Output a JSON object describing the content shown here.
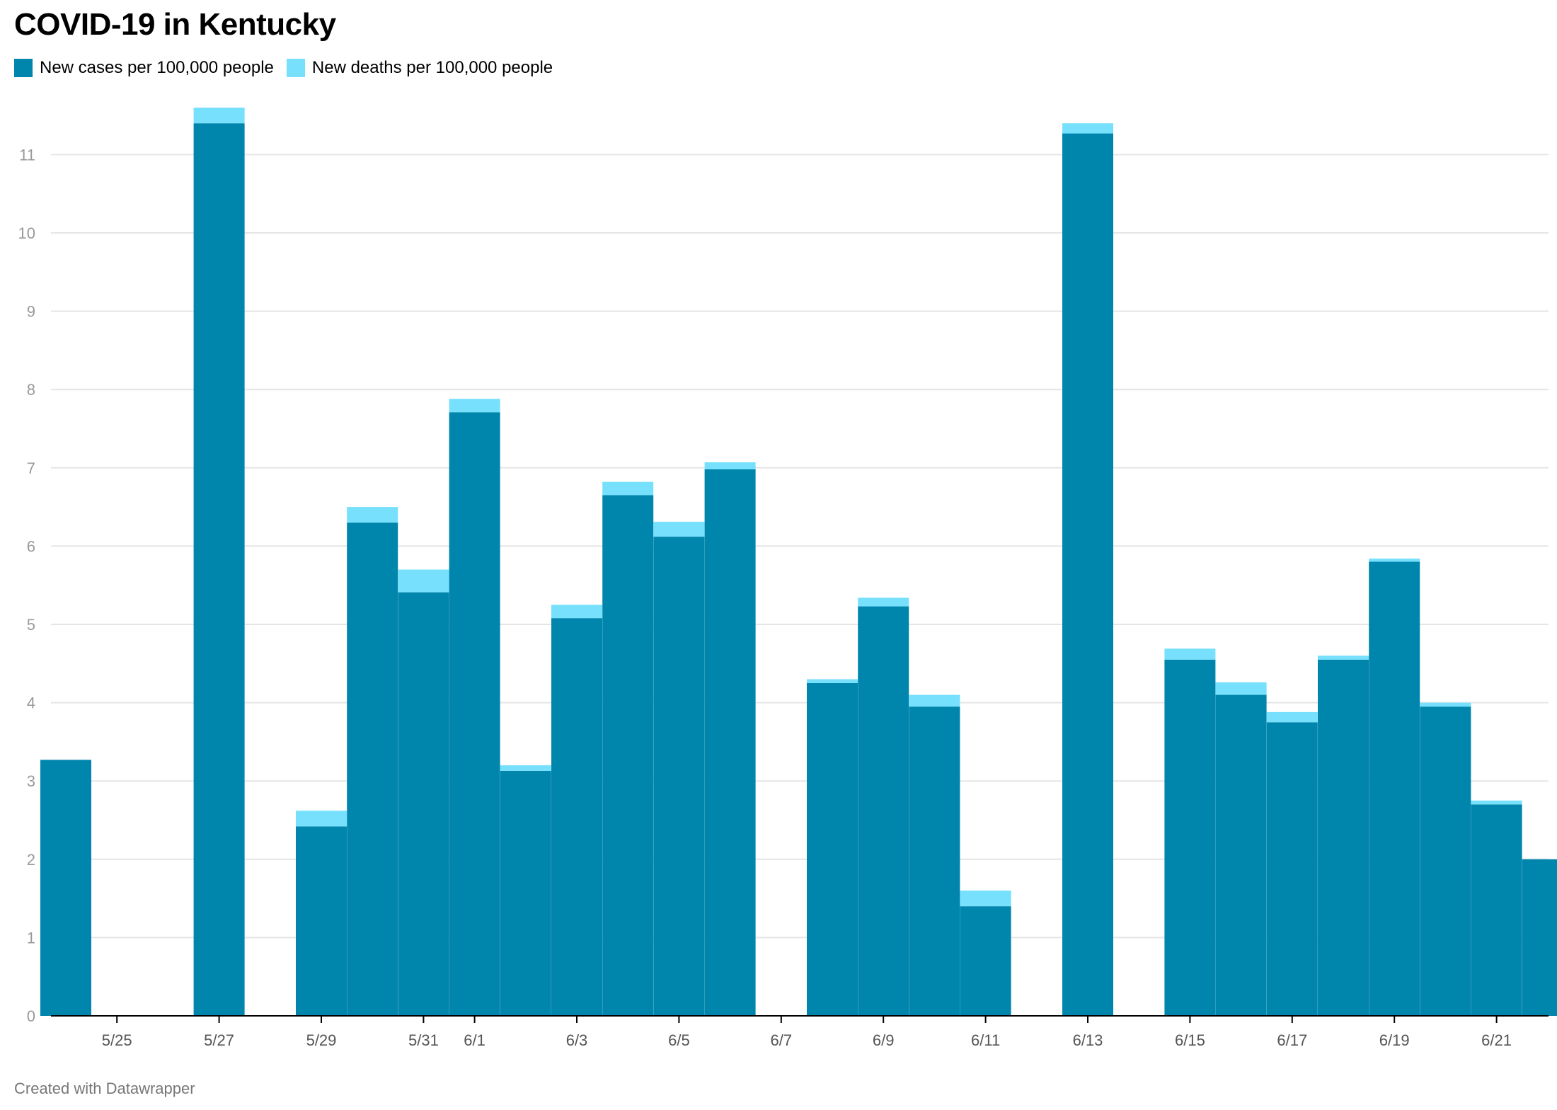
{
  "title": "COVID-19 in Kentucky",
  "credit": "Created with Datawrapper",
  "colors": {
    "cases": "#0085ad",
    "deaths": "#76e0fd",
    "grid": "#e5e5e5",
    "axis": "#000000",
    "y_tick_text": "#999999",
    "x_tick_text": "#555555"
  },
  "chart_data": {
    "type": "bar",
    "stacked": true,
    "title": "COVID-19 in Kentucky",
    "xlabel": "",
    "ylabel": "",
    "ylim": [
      0,
      11.6
    ],
    "grid": true,
    "legend": "top-left",
    "categories": [
      "5/24",
      "5/25",
      "5/26",
      "5/27",
      "5/28",
      "5/29",
      "5/30",
      "5/31",
      "6/1",
      "6/2",
      "6/3",
      "6/4",
      "6/5",
      "6/6",
      "6/7",
      "6/8",
      "6/9",
      "6/10",
      "6/11",
      "6/12",
      "6/13",
      "6/14",
      "6/15",
      "6/16",
      "6/17",
      "6/18",
      "6/19",
      "6/20",
      "6/21",
      "6/22"
    ],
    "x_ticks": [
      "5/25",
      "5/27",
      "5/29",
      "5/31",
      "6/1",
      "6/3",
      "6/5",
      "6/7",
      "6/9",
      "6/11",
      "6/13",
      "6/15",
      "6/17",
      "6/19",
      "6/21"
    ],
    "y_ticks": [
      0,
      1,
      2,
      3,
      4,
      5,
      6,
      7,
      8,
      9,
      10,
      11
    ],
    "series": [
      {
        "name": "New cases per 100,000 people",
        "values": [
          3.27,
          0,
          0,
          11.4,
          0,
          2.42,
          6.3,
          5.41,
          7.71,
          3.13,
          5.08,
          6.65,
          6.12,
          6.98,
          0,
          4.25,
          5.23,
          3.95,
          1.4,
          0,
          11.27,
          0,
          4.55,
          4.1,
          3.75,
          4.55,
          5.8,
          3.95,
          2.7,
          2.0
        ]
      },
      {
        "name": "New deaths per 100,000 people",
        "values": [
          0,
          0,
          0,
          0.2,
          0,
          0.2,
          0.2,
          0.29,
          0.17,
          0.07,
          0.17,
          0.17,
          0.19,
          0.09,
          0,
          0.05,
          0.11,
          0.15,
          0.2,
          0,
          0.13,
          0,
          0.14,
          0.16,
          0.13,
          0.05,
          0.04,
          0.05,
          0.05,
          0
        ]
      }
    ]
  }
}
